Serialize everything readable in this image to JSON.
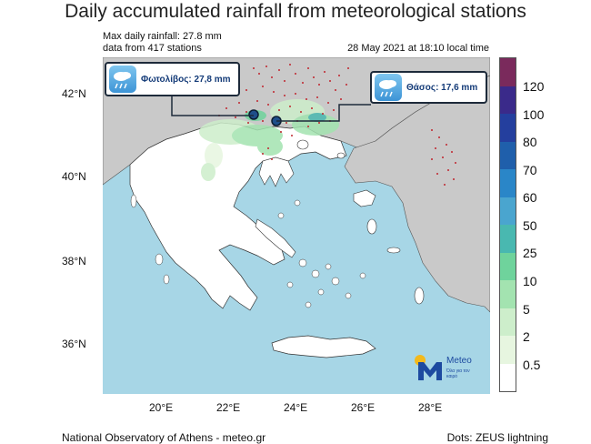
{
  "title": "Daily accumulated rainfall from meteorological stations",
  "info": {
    "max_rainfall": "Max daily rainfall: 27.8 mm",
    "stations": "data from 417 stations",
    "timestamp": "28 May 2021 at 18:10 local time"
  },
  "callouts": {
    "left": "Φωτολίβος: 27,8 mm",
    "right": "Θάσος: 17,6 mm"
  },
  "axes": {
    "lat": [
      "42°N",
      "40°N",
      "38°N",
      "36°N"
    ],
    "lon": [
      "20°E",
      "22°E",
      "24°E",
      "26°E",
      "28°E"
    ]
  },
  "colorbar": {
    "labels": [
      "120",
      "100",
      "80",
      "70",
      "60",
      "50",
      "25",
      "10",
      "5",
      "2",
      "0.5"
    ],
    "colors": [
      "#7a2a5c",
      "#3a2a8a",
      "#243f9e",
      "#1f5fab",
      "#2a86c8",
      "#4aa5cf",
      "#49b8b0",
      "#6fd39c",
      "#a3e3b0",
      "#cdeecb",
      "#e7f6e0",
      "#ffffff"
    ]
  },
  "logo": {
    "brand": "Meteo",
    "tagline": "Όλα για τον καιρό"
  },
  "footer": {
    "left": "National Observatory of Athens - meteo.gr",
    "right": "Dots: ZEUS lightning"
  },
  "colors": {
    "sea": "#a7d6e6",
    "land": "#c9c9c9",
    "greece": "#ffffff",
    "lightning": "#c0252e",
    "station": "#1f4f8a"
  }
}
